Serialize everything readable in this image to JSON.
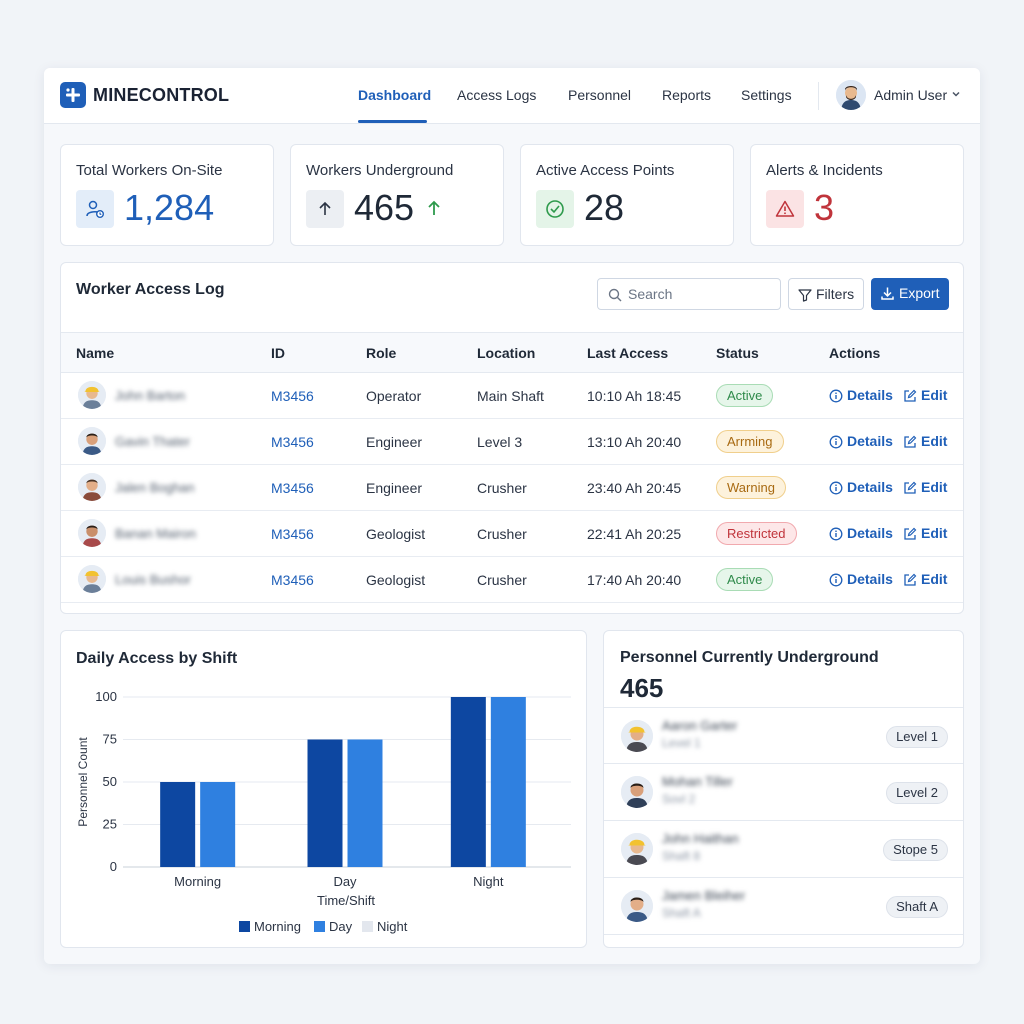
{
  "brand": "MINECONTROL",
  "nav": [
    "Dashboard",
    "Access Logs",
    "Personnel",
    "Reports",
    "Settings"
  ],
  "nav_active": "Dashboard",
  "user": {
    "name": "Admin User"
  },
  "stats": [
    {
      "title": "Total Workers On-Site",
      "value": "1,284",
      "icon": "user-clock-icon",
      "color": "#1f5fb8"
    },
    {
      "title": "Workers Underground",
      "value": "465",
      "icon": "arrow-up-icon",
      "trend": "up",
      "color": "#1f2937"
    },
    {
      "title": "Active Access Points",
      "value": "28",
      "icon": "check-circle-icon",
      "color": "#1f2937"
    },
    {
      "title": "Alerts & Incidents",
      "value": "3",
      "icon": "warning-icon",
      "color": "#c0343b"
    }
  ],
  "access_log": {
    "title": "Worker Access Log",
    "search_placeholder": "Search",
    "filters_label": "Filters",
    "export_label": "Export",
    "columns": [
      "Name",
      "ID",
      "Role",
      "Location",
      "Last Access",
      "Status",
      "Actions"
    ],
    "rows": [
      {
        "name": "John Barton",
        "id": "M3456",
        "role": "Operator",
        "location": "Main Shaft",
        "last_access": "10:10 Ah 18:45",
        "status": "Active",
        "status_kind": "active",
        "details": "Details",
        "edit": "Edit"
      },
      {
        "name": "Gavin Thater",
        "id": "M3456",
        "role": "Engineer",
        "location": "Level 3",
        "last_access": "13:10 Ah 20:40",
        "status": "Arrming",
        "status_kind": "warning",
        "details": "Details",
        "edit": "Edit"
      },
      {
        "name": "Jalen Boghan",
        "id": "M3456",
        "role": "Engineer",
        "location": "Crusher",
        "last_access": "23:40 Ah 20:45",
        "status": "Warning",
        "status_kind": "warning",
        "details": "Details",
        "edit": "Edit"
      },
      {
        "name": "Banan Mairon",
        "id": "M3456",
        "role": "Geologist",
        "location": "Crusher",
        "last_access": "22:41 Ah 20:25",
        "status": "Restricted",
        "status_kind": "restricted",
        "details": "Details",
        "edit": "Edit"
      },
      {
        "name": "Louis Bushor",
        "id": "M3456",
        "role": "Geologist",
        "location": "Crusher",
        "last_access": "17:40 Ah 20:40",
        "status": "Active",
        "status_kind": "active",
        "details": "Details",
        "edit": "Edit"
      }
    ]
  },
  "status_colors": {
    "active": {
      "bg": "#e6f6ea",
      "border": "#a9dcb5",
      "text": "#2e8a4a"
    },
    "warning": {
      "bg": "#fdf2dc",
      "border": "#f0cf8c",
      "text": "#a86a12"
    },
    "restricted": {
      "bg": "#fde7e8",
      "border": "#f1a9ae",
      "text": "#c0343b"
    }
  },
  "chart_data": {
    "type": "bar",
    "title": "Daily Access by Shift",
    "xlabel": "Time/Shift",
    "ylabel": "Personnel Count",
    "categories": [
      "Morning",
      "Day",
      "Night"
    ],
    "series": [
      {
        "name": "Morning",
        "values": [
          50,
          75,
          100
        ],
        "color": "#0d47a1"
      },
      {
        "name": "Day",
        "values": [
          50,
          75,
          100
        ],
        "color": "#2f80e0"
      }
    ],
    "legend": [
      {
        "name": "Morning",
        "color": "#0d47a1"
      },
      {
        "name": "Day",
        "color": "#2f80e0"
      },
      {
        "name": "Night",
        "color": "#e3e7ee"
      }
    ],
    "yticks": [
      "100",
      "75",
      "50",
      "25",
      "0"
    ],
    "ylim": [
      0,
      100
    ],
    "grid": true,
    "legend_position": "bottom"
  },
  "underground": {
    "title": "Personnel Currently Underground",
    "count": "465",
    "people": [
      {
        "name": "Aaron Garter",
        "sub": "Level 1",
        "badge": "Level 1"
      },
      {
        "name": "Mohan Tiller",
        "sub": "Sovl 2",
        "badge": "Level 2"
      },
      {
        "name": "John Haithan",
        "sub": "Shaft 8",
        "badge": "Stope 5"
      },
      {
        "name": "Jamen Bleiher",
        "sub": "Shaft A",
        "badge": "Shaft A"
      }
    ]
  }
}
